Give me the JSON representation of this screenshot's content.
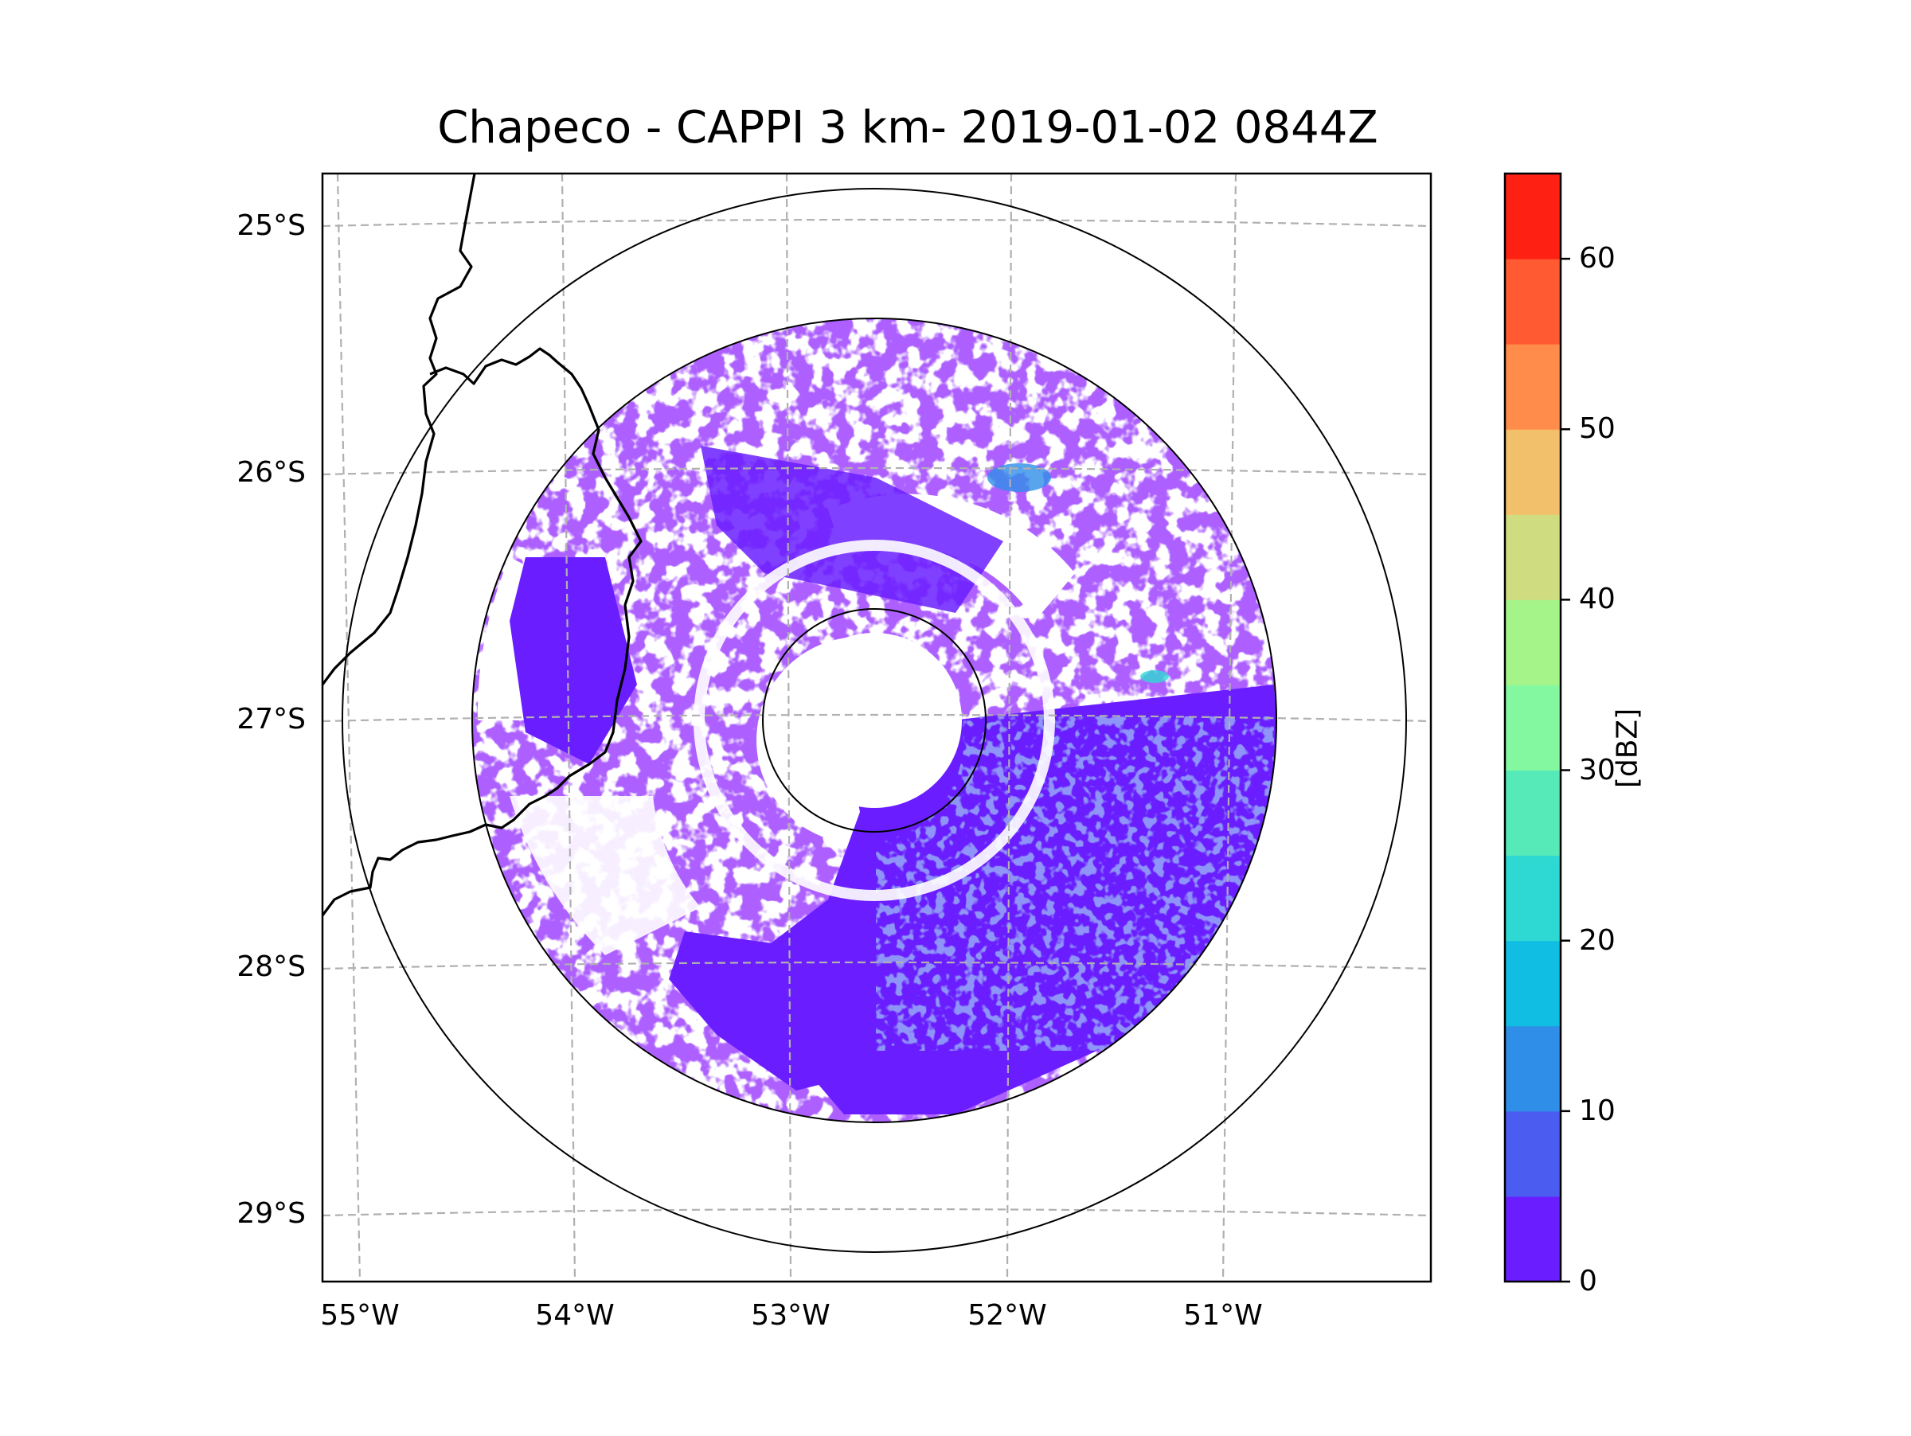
{
  "title": "Chapeco - CAPPI 3 km- 2019-01-02 0844Z",
  "lat_ticks": [
    "25°S",
    "26°S",
    "27°S",
    "28°S",
    "29°S"
  ],
  "lon_ticks": [
    "55°W",
    "54°W",
    "53°W",
    "52°W",
    "51°W"
  ],
  "colorbar": {
    "label": "[dBZ]",
    "ticks": [
      "0",
      "10",
      "20",
      "30",
      "40",
      "50",
      "60"
    ],
    "range": [
      0,
      65
    ],
    "colors": [
      "#6a1eff",
      "#4b5cf0",
      "#2f8fe8",
      "#10bde3",
      "#2fd9d3",
      "#55eab8",
      "#84f8a0",
      "#a4f48a",
      "#cfdd80",
      "#f2c06a",
      "#ff8c4a",
      "#ff5a32",
      "#ff2014"
    ]
  },
  "colors": {
    "echo_low": "#6a1eff",
    "echo_mid": "#4b5cf0",
    "echo_high": "#2f8fe8",
    "grid": "#b0b0b0",
    "border": "#000000"
  },
  "icons": [
    "radar-range-ring-icon",
    "state-border-icon"
  ]
}
